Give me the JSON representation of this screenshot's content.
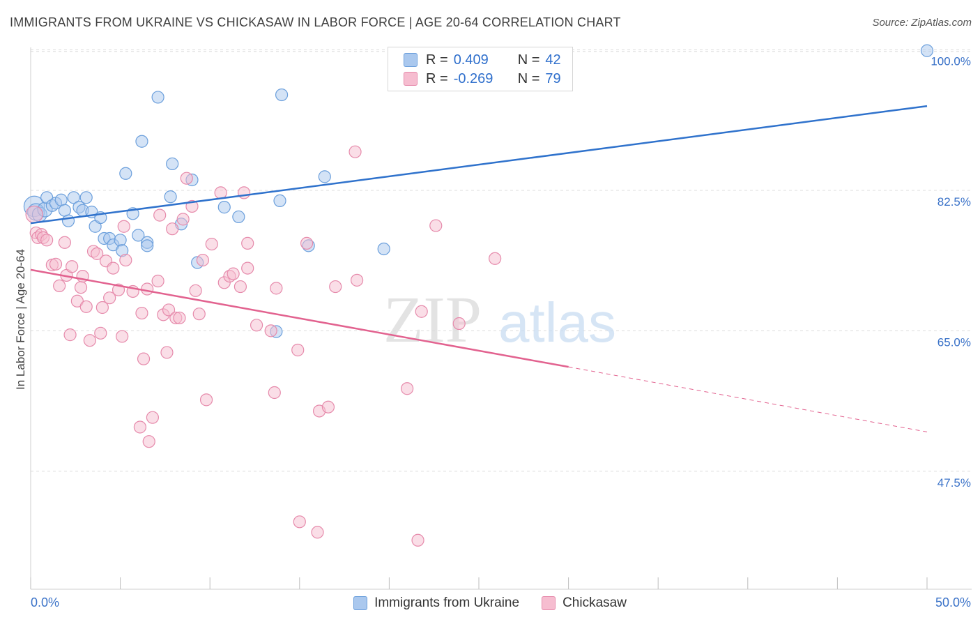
{
  "header": {
    "title": "IMMIGRANTS FROM UKRAINE VS CHICKASAW IN LABOR FORCE | AGE 20-64 CORRELATION CHART",
    "source": "Source: ZipAtlas.com"
  },
  "watermark": {
    "zip": "ZIP",
    "atlas": "atlas"
  },
  "stats": [
    {
      "r_label": "R =",
      "r_value": "0.409",
      "n_label": "N =",
      "n_value": "42"
    },
    {
      "r_label": "R =",
      "r_value": "-0.269",
      "n_label": "N =",
      "n_value": "79"
    }
  ],
  "legend": [
    {
      "label": "Immigrants from Ukraine"
    },
    {
      "label": "Chickasaw"
    }
  ],
  "colors": {
    "blue_fill": "#aac8ee",
    "blue_stroke": "#6b9fdc",
    "blue_line": "#2f72cc",
    "pink_fill": "#f6bdd0",
    "pink_stroke": "#e68aab",
    "pink_line": "#e2628f",
    "tick_label": "#3a72c8",
    "grid": "#dcdcdc"
  },
  "chart_data": {
    "type": "scatter",
    "title": "IMMIGRANTS FROM UKRAINE VS CHICKASAW IN LABOR FORCE | AGE 20-64 CORRELATION CHART",
    "xlabel": "",
    "ylabel": "In Labor Force | Age 20-64",
    "xlim": [
      0,
      50
    ],
    "ylim": [
      32.8,
      101.0
    ],
    "x_tick_labels": [
      "0.0%",
      "50.0%"
    ],
    "y_ticks": [
      100.0,
      82.5,
      65.0,
      47.5
    ],
    "y_tick_labels": [
      "100.0%",
      "82.5%",
      "65.0%",
      "47.5%"
    ],
    "grid": true,
    "legend_position": "bottom",
    "series": [
      {
        "name": "Immigrants from Ukraine",
        "color": "#aac8ee",
        "points": [
          [
            0.2,
            80.5,
            3
          ],
          [
            0.3,
            79.8,
            2
          ],
          [
            0.5,
            79.5,
            1.5
          ],
          [
            0.8,
            80.1,
            1.5
          ],
          [
            0.9,
            81.6,
            1
          ],
          [
            1.2,
            80.6,
            1
          ],
          [
            1.4,
            80.9,
            1
          ],
          [
            1.7,
            81.3,
            1
          ],
          [
            1.9,
            80.0,
            1
          ],
          [
            2.1,
            78.7,
            1
          ],
          [
            2.4,
            81.6,
            1
          ],
          [
            2.7,
            80.4,
            1
          ],
          [
            2.9,
            80.0,
            1
          ],
          [
            3.1,
            81.6,
            1
          ],
          [
            3.4,
            79.8,
            1
          ],
          [
            3.6,
            78.0,
            1
          ],
          [
            3.9,
            79.1,
            1
          ],
          [
            4.1,
            76.5,
            1
          ],
          [
            4.4,
            76.5,
            1
          ],
          [
            4.6,
            75.7,
            1
          ],
          [
            5.0,
            76.3,
            1
          ],
          [
            5.1,
            75.0,
            1
          ],
          [
            5.3,
            84.6,
            1
          ],
          [
            5.7,
            79.6,
            1
          ],
          [
            6.0,
            76.9,
            1
          ],
          [
            6.2,
            88.6,
            1
          ],
          [
            6.5,
            76.0,
            1
          ],
          [
            6.5,
            75.6,
            1
          ],
          [
            7.1,
            94.1,
            1
          ],
          [
            7.8,
            81.7,
            1
          ],
          [
            7.9,
            85.8,
            1
          ],
          [
            8.4,
            78.3,
            1
          ],
          [
            9.0,
            83.8,
            1
          ],
          [
            9.3,
            73.5,
            1
          ],
          [
            10.8,
            80.4,
            1
          ],
          [
            11.6,
            79.2,
            1
          ],
          [
            13.7,
            64.9,
            1
          ],
          [
            13.9,
            81.2,
            1
          ],
          [
            14.0,
            94.4,
            1
          ],
          [
            15.5,
            75.6,
            1
          ],
          [
            16.4,
            84.2,
            1
          ],
          [
            19.7,
            75.2,
            1
          ],
          [
            50.0,
            99.9,
            1
          ]
        ]
      },
      {
        "name": "Chickasaw",
        "color": "#f6bdd0",
        "points": [
          [
            0.2,
            79.5,
            2
          ],
          [
            0.3,
            77.2,
            1
          ],
          [
            0.4,
            76.6,
            1
          ],
          [
            0.6,
            77.0,
            1
          ],
          [
            0.7,
            76.6,
            1
          ],
          [
            0.9,
            76.3,
            1
          ],
          [
            1.2,
            73.2,
            1
          ],
          [
            1.4,
            73.3,
            1
          ],
          [
            1.6,
            70.6,
            1
          ],
          [
            1.9,
            76.0,
            1
          ],
          [
            2.0,
            71.9,
            1
          ],
          [
            2.2,
            64.5,
            1
          ],
          [
            2.3,
            73.0,
            1
          ],
          [
            2.6,
            68.7,
            1
          ],
          [
            2.8,
            70.4,
            1
          ],
          [
            2.9,
            71.8,
            1
          ],
          [
            3.1,
            68.0,
            1
          ],
          [
            3.3,
            63.8,
            1
          ],
          [
            3.5,
            74.9,
            1
          ],
          [
            3.7,
            74.6,
            1
          ],
          [
            3.9,
            64.7,
            1
          ],
          [
            4.0,
            67.9,
            1
          ],
          [
            4.2,
            73.7,
            1
          ],
          [
            4.4,
            69.1,
            1
          ],
          [
            4.6,
            72.8,
            1
          ],
          [
            4.9,
            70.1,
            1
          ],
          [
            5.1,
            64.3,
            1
          ],
          [
            5.2,
            78.0,
            1
          ],
          [
            5.3,
            73.8,
            1
          ],
          [
            5.7,
            69.9,
            1
          ],
          [
            6.1,
            53.0,
            1
          ],
          [
            6.2,
            67.2,
            1
          ],
          [
            6.3,
            61.5,
            1
          ],
          [
            6.5,
            70.2,
            1
          ],
          [
            6.6,
            51.2,
            1
          ],
          [
            6.8,
            54.2,
            1
          ],
          [
            7.1,
            71.2,
            1
          ],
          [
            7.2,
            79.4,
            1
          ],
          [
            7.4,
            67.0,
            1
          ],
          [
            7.6,
            62.3,
            1
          ],
          [
            7.7,
            67.6,
            1
          ],
          [
            7.9,
            77.7,
            1
          ],
          [
            8.1,
            66.6,
            1
          ],
          [
            8.3,
            66.6,
            1
          ],
          [
            8.5,
            78.9,
            1
          ],
          [
            8.7,
            84.0,
            1
          ],
          [
            9.0,
            80.5,
            1
          ],
          [
            9.2,
            70.0,
            1
          ],
          [
            9.4,
            67.1,
            1
          ],
          [
            9.6,
            73.8,
            1
          ],
          [
            9.8,
            56.4,
            1
          ],
          [
            10.1,
            75.8,
            1
          ],
          [
            10.6,
            82.2,
            1
          ],
          [
            10.8,
            71.0,
            1
          ],
          [
            11.1,
            71.8,
            1
          ],
          [
            11.3,
            72.1,
            1
          ],
          [
            11.7,
            70.5,
            1
          ],
          [
            11.9,
            82.2,
            1
          ],
          [
            12.1,
            72.8,
            1
          ],
          [
            12.1,
            75.9,
            1
          ],
          [
            12.6,
            65.7,
            1
          ],
          [
            13.4,
            65.0,
            1
          ],
          [
            13.6,
            57.3,
            1
          ],
          [
            13.7,
            70.3,
            1
          ],
          [
            14.9,
            62.6,
            1
          ],
          [
            15.0,
            41.2,
            1
          ],
          [
            15.4,
            75.9,
            1
          ],
          [
            16.0,
            39.9,
            1
          ],
          [
            16.1,
            55.0,
            1
          ],
          [
            16.6,
            55.5,
            1
          ],
          [
            17.0,
            70.5,
            1
          ],
          [
            18.1,
            87.3,
            1
          ],
          [
            18.2,
            71.3,
            1
          ],
          [
            21.0,
            57.8,
            1
          ],
          [
            21.6,
            38.9,
            1
          ],
          [
            21.8,
            67.4,
            1
          ],
          [
            22.6,
            78.1,
            1
          ],
          [
            23.9,
            65.9,
            1
          ],
          [
            25.9,
            74.0,
            1
          ]
        ]
      }
    ],
    "trend_lines": [
      {
        "series": "Immigrants from Ukraine",
        "from": [
          0,
          78.4
        ],
        "to": [
          50,
          93.0
        ],
        "style": "solid"
      },
      {
        "series": "Chickasaw",
        "from": [
          0,
          72.6
        ],
        "to": [
          30,
          60.5
        ],
        "style": "solid"
      },
      {
        "series": "Chickasaw",
        "from": [
          30,
          60.5
        ],
        "to": [
          50,
          52.4
        ],
        "style": "dashed"
      }
    ]
  }
}
